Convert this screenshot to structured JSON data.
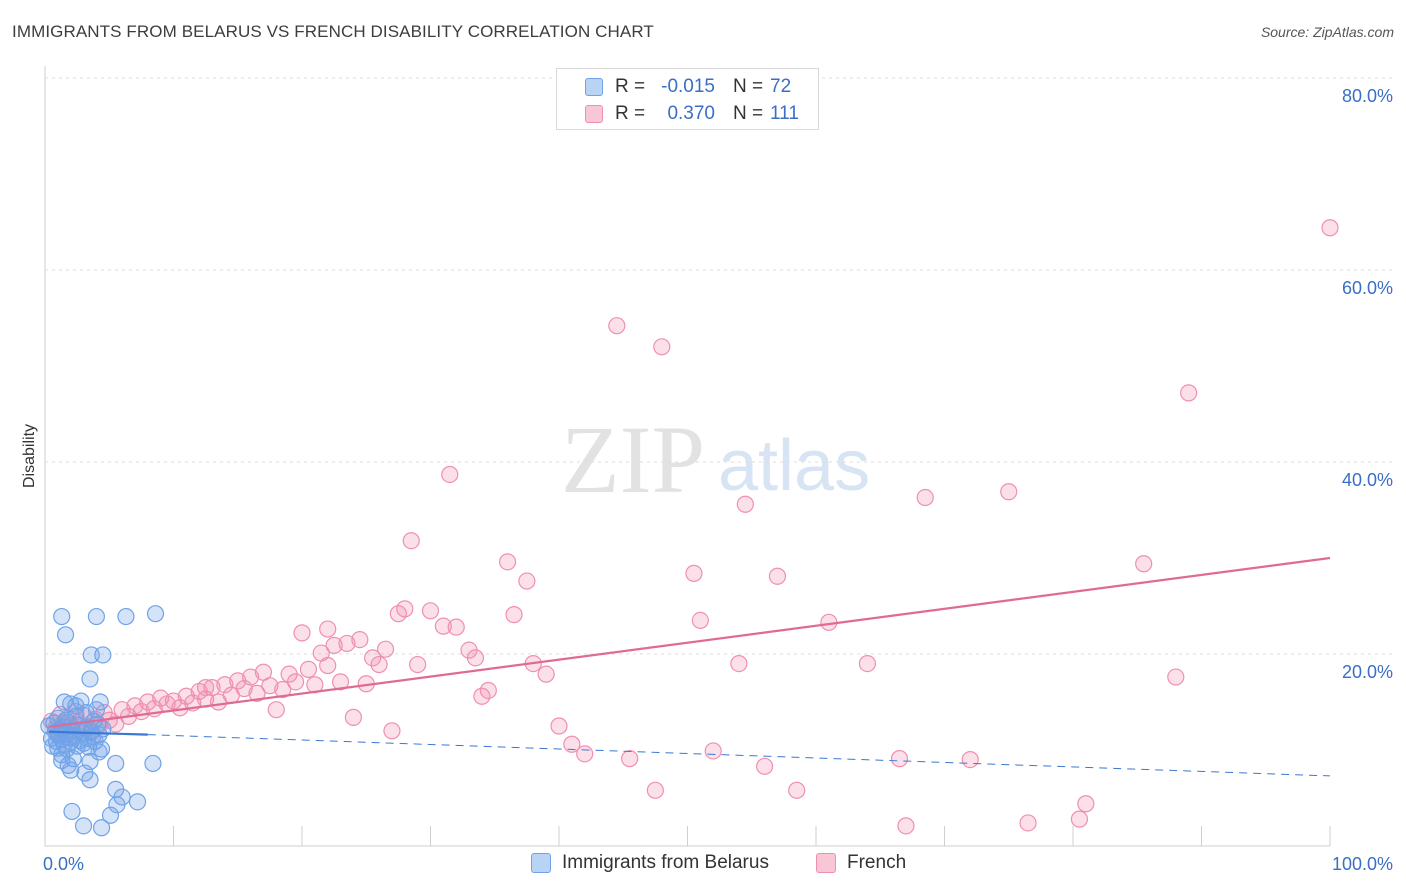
{
  "title": "IMMIGRANTS FROM BELARUS VS FRENCH DISABILITY CORRELATION CHART",
  "source": "Source: ZipAtlas.com",
  "watermark": {
    "zip": "ZIP",
    "atlas": "atlas"
  },
  "legend": [
    {
      "r_label": "R =",
      "r_value": "-0.015",
      "n_label": "N =",
      "n_value": "72",
      "color": "#6fa3e8"
    },
    {
      "r_label": "R =",
      "r_value": "0.370",
      "n_label": "N =",
      "n_value": "111",
      "color": "#f08fb0"
    }
  ],
  "bottom_legend": [
    {
      "label": "Immigrants from Belarus",
      "color": "#6fa3e8"
    },
    {
      "label": "French",
      "color": "#f08fb0"
    }
  ],
  "chart_data": {
    "type": "scatter",
    "xlabel": "",
    "ylabel": "Disability",
    "xlim": [
      0,
      100
    ],
    "ylim": [
      0,
      80
    ],
    "x_tick_labels": [
      "0.0%",
      "100.0%"
    ],
    "y_tick_labels": [
      "20.0%",
      "40.0%",
      "60.0%",
      "80.0%"
    ],
    "y_ticks": [
      20,
      40,
      60,
      80
    ],
    "grid": true,
    "series": [
      {
        "name": "Immigrants from Belarus",
        "color": "#6fa3e8",
        "trend": {
          "x": [
            0.3,
            8.0
          ],
          "y": [
            11.9,
            11.6
          ],
          "dash_to_x": 100,
          "dash_to_y": 7.3,
          "color": "#3a78d4"
        },
        "points": [
          [
            0.3,
            12.5
          ],
          [
            0.5,
            11.2
          ],
          [
            0.6,
            10.4
          ],
          [
            0.7,
            12.8
          ],
          [
            0.8,
            11.9
          ],
          [
            0.9,
            10.9
          ],
          [
            1.0,
            13.3
          ],
          [
            1.0,
            10.2
          ],
          [
            1.1,
            11.6
          ],
          [
            1.2,
            12.2
          ],
          [
            1.3,
            9.5
          ],
          [
            1.3,
            11.1
          ],
          [
            1.4,
            12.4
          ],
          [
            1.5,
            10.6
          ],
          [
            1.6,
            13.1
          ],
          [
            1.6,
            11.7
          ],
          [
            1.7,
            10.1
          ],
          [
            1.8,
            12.9
          ],
          [
            1.9,
            11.3
          ],
          [
            2.0,
            14.8
          ],
          [
            2.0,
            10.8
          ],
          [
            2.1,
            12.1
          ],
          [
            2.2,
            9.1
          ],
          [
            2.3,
            11.5
          ],
          [
            2.4,
            13.5
          ],
          [
            2.5,
            10.4
          ],
          [
            2.6,
            12.6
          ],
          [
            2.7,
            11.0
          ],
          [
            2.8,
            15.1
          ],
          [
            2.9,
            11.8
          ],
          [
            3.0,
            10.7
          ],
          [
            3.1,
            12.3
          ],
          [
            3.2,
            13.9
          ],
          [
            3.3,
            11.2
          ],
          [
            3.4,
            10.3
          ],
          [
            3.5,
            17.4
          ],
          [
            3.6,
            12.0
          ],
          [
            3.7,
            11.4
          ],
          [
            3.8,
            13.0
          ],
          [
            3.9,
            10.9
          ],
          [
            4.0,
            14.2
          ],
          [
            4.1,
            12.7
          ],
          [
            4.2,
            11.6
          ],
          [
            4.3,
            15.0
          ],
          [
            4.4,
            10.1
          ],
          [
            4.5,
            12.2
          ],
          [
            1.3,
            23.9
          ],
          [
            4.0,
            23.9
          ],
          [
            6.3,
            23.9
          ],
          [
            8.6,
            24.2
          ],
          [
            1.6,
            22.0
          ],
          [
            3.6,
            19.9
          ],
          [
            4.5,
            19.9
          ],
          [
            1.8,
            8.4
          ],
          [
            2.0,
            7.9
          ],
          [
            3.1,
            7.6
          ],
          [
            3.5,
            8.8
          ],
          [
            4.2,
            9.8
          ],
          [
            5.5,
            8.6
          ],
          [
            8.4,
            8.6
          ],
          [
            3.5,
            6.9
          ],
          [
            5.5,
            5.9
          ],
          [
            6.0,
            5.1
          ],
          [
            5.6,
            4.3
          ],
          [
            7.2,
            4.6
          ],
          [
            2.1,
            3.6
          ],
          [
            3.0,
            2.1
          ],
          [
            5.1,
            3.2
          ],
          [
            4.4,
            1.9
          ],
          [
            1.3,
            8.9
          ],
          [
            1.5,
            15.0
          ],
          [
            2.4,
            14.6
          ]
        ]
      },
      {
        "name": "French",
        "color": "#f08fb0",
        "trend": {
          "x": [
            0.3,
            100
          ],
          "y": [
            12.4,
            30.0
          ],
          "color": "#e06a96"
        },
        "points": [
          [
            0.5,
            13.0
          ],
          [
            0.8,
            12.2
          ],
          [
            1.0,
            11.6
          ],
          [
            1.2,
            13.7
          ],
          [
            1.4,
            12.8
          ],
          [
            1.6,
            11.9
          ],
          [
            1.8,
            13.3
          ],
          [
            2.0,
            12.5
          ],
          [
            2.2,
            11.3
          ],
          [
            2.4,
            14.0
          ],
          [
            2.6,
            12.9
          ],
          [
            2.8,
            12.1
          ],
          [
            3.0,
            13.6
          ],
          [
            3.3,
            12.4
          ],
          [
            3.6,
            11.8
          ],
          [
            3.9,
            13.2
          ],
          [
            4.2,
            12.6
          ],
          [
            4.6,
            13.9
          ],
          [
            5.0,
            13.1
          ],
          [
            5.5,
            12.7
          ],
          [
            6.0,
            14.2
          ],
          [
            6.5,
            13.5
          ],
          [
            7.0,
            14.6
          ],
          [
            7.5,
            14.0
          ],
          [
            8.0,
            15.0
          ],
          [
            8.5,
            14.3
          ],
          [
            9.0,
            15.4
          ],
          [
            9.5,
            14.8
          ],
          [
            10.0,
            15.1
          ],
          [
            10.5,
            14.4
          ],
          [
            11.0,
            15.6
          ],
          [
            11.5,
            14.9
          ],
          [
            12.0,
            16.1
          ],
          [
            12.5,
            15.3
          ],
          [
            13.0,
            16.5
          ],
          [
            13.5,
            15.0
          ],
          [
            14.0,
            16.8
          ],
          [
            14.5,
            15.7
          ],
          [
            15.0,
            17.2
          ],
          [
            15.5,
            16.4
          ],
          [
            16.0,
            17.6
          ],
          [
            16.5,
            15.9
          ],
          [
            17.0,
            18.1
          ],
          [
            17.5,
            16.7
          ],
          [
            18.0,
            14.2
          ],
          [
            18.5,
            16.3
          ],
          [
            19.0,
            17.9
          ],
          [
            19.5,
            17.1
          ],
          [
            20.0,
            22.2
          ],
          [
            20.5,
            18.4
          ],
          [
            21.0,
            16.8
          ],
          [
            21.5,
            20.1
          ],
          [
            22.0,
            18.8
          ],
          [
            22.5,
            20.9
          ],
          [
            23.0,
            17.1
          ],
          [
            23.5,
            21.1
          ],
          [
            24.0,
            13.4
          ],
          [
            24.5,
            21.5
          ],
          [
            25.0,
            16.9
          ],
          [
            25.5,
            19.6
          ],
          [
            26.0,
            18.9
          ],
          [
            26.5,
            20.5
          ],
          [
            27.0,
            12.0
          ],
          [
            27.5,
            24.2
          ],
          [
            28.0,
            24.7
          ],
          [
            28.5,
            31.8
          ],
          [
            29.0,
            18.9
          ],
          [
            30.0,
            24.5
          ],
          [
            31.0,
            22.9
          ],
          [
            32.0,
            22.8
          ],
          [
            33.0,
            20.4
          ],
          [
            33.5,
            19.6
          ],
          [
            34.0,
            15.6
          ],
          [
            34.5,
            16.2
          ],
          [
            36.0,
            29.6
          ],
          [
            36.5,
            24.1
          ],
          [
            37.5,
            27.6
          ],
          [
            38.0,
            19.0
          ],
          [
            39.0,
            17.9
          ],
          [
            40.0,
            12.5
          ],
          [
            41.0,
            10.6
          ],
          [
            42.0,
            9.6
          ],
          [
            45.5,
            9.1
          ],
          [
            50.5,
            28.4
          ],
          [
            51.0,
            23.5
          ],
          [
            54.5,
            35.6
          ],
          [
            54.0,
            19.0
          ],
          [
            57.0,
            28.1
          ],
          [
            58.5,
            5.8
          ],
          [
            61.0,
            23.3
          ],
          [
            64.0,
            19.0
          ],
          [
            68.5,
            36.3
          ],
          [
            72.0,
            9.0
          ],
          [
            75.0,
            36.9
          ],
          [
            76.5,
            2.4
          ],
          [
            80.5,
            2.8
          ],
          [
            81.0,
            4.4
          ],
          [
            85.5,
            29.4
          ],
          [
            88.0,
            17.6
          ],
          [
            89.0,
            47.2
          ],
          [
            100.0,
            64.4
          ],
          [
            44.5,
            54.2
          ],
          [
            48.0,
            52.0
          ],
          [
            31.5,
            38.7
          ],
          [
            47.5,
            5.8
          ],
          [
            67.0,
            2.1
          ],
          [
            52.0,
            9.9
          ],
          [
            56.0,
            8.3
          ],
          [
            66.5,
            9.1
          ],
          [
            22.0,
            22.6
          ],
          [
            12.5,
            16.5
          ]
        ]
      }
    ]
  }
}
